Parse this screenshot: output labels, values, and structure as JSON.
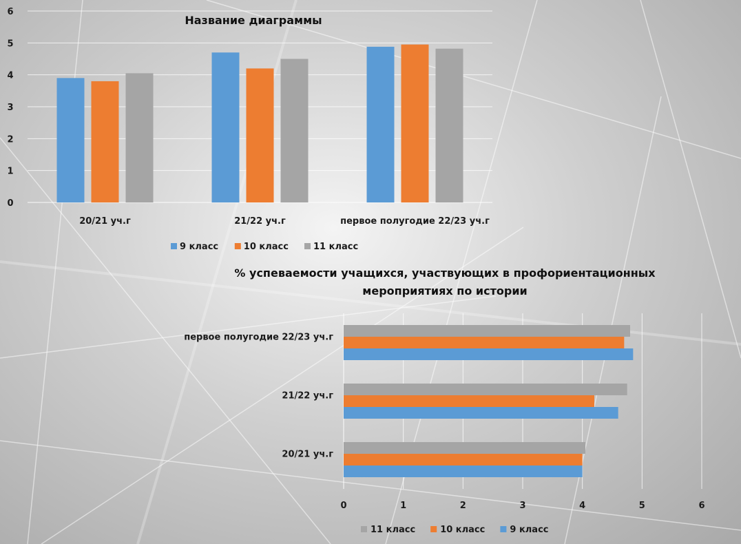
{
  "chart_data": [
    {
      "type": "bar",
      "orientation": "vertical",
      "title": "Название диаграммы",
      "categories": [
        "20/21 уч.г",
        "21/22 уч.г",
        "первое полугодие 22/23 уч.г"
      ],
      "series": [
        {
          "name": "9 класс",
          "values": [
            3.9,
            4.7,
            4.88
          ],
          "color": "#5b9bd5"
        },
        {
          "name": "10 класс",
          "values": [
            3.8,
            4.2,
            4.95
          ],
          "color": "#ed7d31"
        },
        {
          "name": "11 класс",
          "values": [
            4.05,
            4.5,
            4.82
          ],
          "color": "#a5a5a5"
        }
      ],
      "ylim": [
        0,
        6
      ],
      "yticks": [
        "0",
        "1",
        "2",
        "3",
        "4",
        "5",
        "6"
      ],
      "grid": true,
      "legend": "bottom"
    },
    {
      "type": "bar",
      "orientation": "horizontal",
      "title_lines": [
        "% успеваемости учащихся, участвующих в профориентационных",
        "мероприятиях по истории"
      ],
      "categories": [
        "20/21 уч.г",
        "21/22 уч.г",
        "первое полугодие 22/23 уч.г"
      ],
      "series": [
        {
          "name": "9 класс",
          "values": [
            4.0,
            4.6,
            4.85
          ],
          "color": "#5b9bd5"
        },
        {
          "name": "10 класс",
          "values": [
            4.0,
            4.2,
            4.7
          ],
          "color": "#ed7d31"
        },
        {
          "name": "11 класс",
          "values": [
            4.05,
            4.75,
            4.8
          ],
          "color": "#a5a5a5"
        }
      ],
      "xlim": [
        0,
        6
      ],
      "xticks": [
        "0",
        "1",
        "2",
        "3",
        "4",
        "5",
        "6"
      ],
      "grid": true,
      "legend": "bottom",
      "legend_order": [
        "11 класс",
        "10 класс",
        "9 класс"
      ]
    }
  ]
}
